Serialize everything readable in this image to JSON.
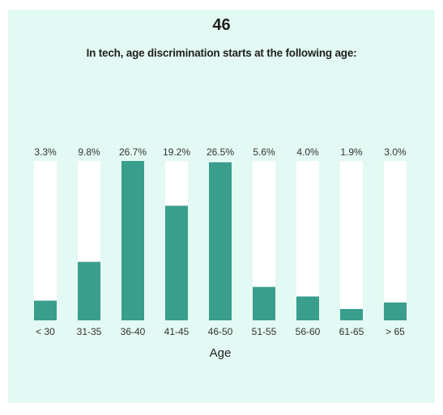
{
  "header": {
    "number": "46",
    "title": "In tech, age discrimination starts at the following age:"
  },
  "colors": {
    "background": "#e3f9f3",
    "bar_fill": "#3a9e8c",
    "track": "#ffffff"
  },
  "chart_data": {
    "type": "bar",
    "categories": [
      "< 30",
      "31-35",
      "36-40",
      "41-45",
      "46-50",
      "51-55",
      "56-60",
      "61-65",
      "> 65"
    ],
    "values": [
      3.3,
      9.8,
      26.7,
      19.2,
      26.5,
      5.6,
      4.0,
      1.9,
      3.0
    ],
    "value_labels": [
      "3.3%",
      "9.8%",
      "26.7%",
      "19.2%",
      "26.5%",
      "5.6%",
      "4.0%",
      "1.9%",
      "3.0%"
    ],
    "title": "In tech, age discrimination starts at the following age:",
    "xlabel": "Age",
    "ylabel": "",
    "ylim": [
      0,
      26.7
    ],
    "grid": false,
    "legend": "none"
  }
}
